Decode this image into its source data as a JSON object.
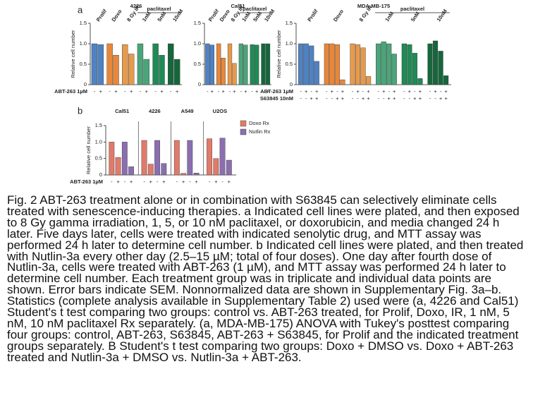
{
  "panel_labels": [
    "a",
    "b"
  ],
  "chart_data": [
    {
      "type": "bar",
      "title": "4226",
      "ylabel": "Relative cell number",
      "categories": [
        "Prolif",
        "Doxo",
        "8 Gy IR",
        "1nM",
        "5nM",
        "10nM"
      ],
      "category_header": "paclitaxel",
      "colors": [
        "#4f82c3",
        "#e8873a",
        "#e69a4c",
        "#4aa57a",
        "#1f8a55",
        "#16663c"
      ],
      "values": [
        [
          1.0,
          0.98
        ],
        [
          1.0,
          0.72
        ],
        [
          0.98,
          0.75
        ],
        [
          1.0,
          0.62
        ],
        [
          1.0,
          0.72
        ],
        [
          1.0,
          0.62
        ]
      ],
      "sign_rows": [
        {
          "label": "ABT-263 1µM",
          "signs": [
            "-",
            "+"
          ]
        }
      ],
      "ylim": [
        0,
        1.5
      ],
      "yticks": [
        0,
        0.5,
        {
          "value": 1,
          "label": "1.0"
        },
        1.5
      ]
    },
    {
      "type": "bar",
      "title": "Cal51",
      "categories": [
        "Prolif",
        "Doxo",
        "8 Gy IR",
        "1nM",
        "5nM",
        "10nM"
      ],
      "category_header": "paclitaxel",
      "colors": [
        "#4f82c3",
        "#e8873a",
        "#e69a4c",
        "#4aa57a",
        "#1f8a55",
        "#16663c"
      ],
      "values": [
        [
          1.0,
          0.97
        ],
        [
          1.0,
          0.65
        ],
        [
          1.0,
          0.52
        ],
        [
          1.0,
          0.97
        ],
        [
          0.98,
          0.97
        ],
        [
          1.0,
          1.0
        ]
      ],
      "sign_rows": [
        {
          "signs": [
            "-",
            "+"
          ]
        }
      ],
      "ylim": [
        0,
        1.5
      ],
      "yticks": [
        0,
        0.5,
        {
          "value": 1,
          "label": "1.0"
        },
        1.5
      ]
    },
    {
      "type": "bar",
      "title": "MDA-MB-175",
      "ylabel": "Relative cell number",
      "categories": [
        "Prolif",
        "Doxo",
        "8 Gy IR",
        "1nM",
        "5nM",
        "10nM"
      ],
      "category_header": "paclitaxel",
      "colors": [
        "#4f82c3",
        "#e8873a",
        "#e69a4c",
        "#4aa57a",
        "#1f8a55",
        "#16663c"
      ],
      "values": [
        [
          1.0,
          1.0,
          0.95,
          0.57
        ],
        [
          1.0,
          1.0,
          0.98,
          0.12
        ],
        [
          1.0,
          0.98,
          0.9,
          0.2
        ],
        [
          1.0,
          1.05,
          1.0,
          0.75
        ],
        [
          1.0,
          0.98,
          0.77,
          0.15
        ],
        [
          1.0,
          1.07,
          0.82,
          0.22
        ]
      ],
      "sign_rows": [
        {
          "label": "ABT-263 1µM",
          "signs": [
            "-",
            "+",
            "-",
            "+"
          ]
        },
        {
          "label": "S63845 10nM",
          "signs": [
            "-",
            "-",
            "+",
            "+"
          ]
        }
      ],
      "ylim": [
        0,
        1.5
      ],
      "yticks": [
        0,
        0.5,
        {
          "value": 1,
          "label": "1.0"
        },
        1.5
      ]
    },
    {
      "type": "grouped-bar",
      "ylabel": "Relative cell number",
      "categories": [
        "Cal51",
        "4226",
        "A549",
        "U2OS"
      ],
      "series": [
        {
          "name": "Doxo Rx",
          "color": "#e07a6a",
          "values": [
            [
              1.0,
              0.53
            ],
            [
              1.05,
              0.33
            ],
            [
              1.05,
              0.05
            ],
            [
              1.1,
              0.5
            ]
          ]
        },
        {
          "name": "Nutlin Rx",
          "color": "#8a6fb0",
          "values": [
            [
              1.0,
              0.25
            ],
            [
              1.05,
              0.35
            ],
            [
              1.05,
              0.06
            ],
            [
              1.12,
              0.45
            ]
          ]
        }
      ],
      "sign_rows": [
        {
          "label": "ABT-263 1µM",
          "signs": [
            "-",
            "+"
          ]
        }
      ],
      "ylim": [
        0,
        1.5
      ],
      "yticks": [
        0,
        0.5,
        {
          "value": 1,
          "label": "1.0"
        },
        1.5
      ]
    }
  ],
  "caption": "Fig. 2 ABT-263 treatment alone or in combination with S63845 can selectively eliminate cells treated with senescence-inducing therapies. a Indicated cell lines were plated, and then exposed to 8 Gy gamma irradiation, 1, 5, or 10 nM paclitaxel, or doxorubicin, and media changed 24 h later. Five days later, cells were treated with indicated senolytic drug, and MTT assay was performed 24 h later to determine cell number. b Indicated cell lines were plated, and then treated with Nutlin-3a every other day (2.5–15 µM; total of four doses). One day after fourth dose of Nutlin-3a, cells were treated with ABT-263 (1 µM), and MTT assay was performed 24 h later to determine cell number. Each treatment group was in triplicate and individual data points are shown. Error bars indicate SEM. Nonnormalized data are shown in Supplementary Fig. 3a–b. Statistics (complete analysis available in Supplementary Table 2) used were (a, 4226 and Cal51) Student's t test comparing two groups: control vs. ABT-263 treated, for Prolif, Doxo, IR, 1 nM, 5 nM, 10 nM paclitaxel Rx separately. (a, MDA-MB-175) ANOVA with Tukey's posttest comparing four groups: control, ABT-263, S63845, ABT-263 + S63845, for Prolif and the indicated treatment groups separately. B Student's t test comparing two groups: Doxo + DMSO vs. Doxo + ABT-263 treated and Nutlin-3a + DMSO vs. Nutlin-3a + ABT-263."
}
